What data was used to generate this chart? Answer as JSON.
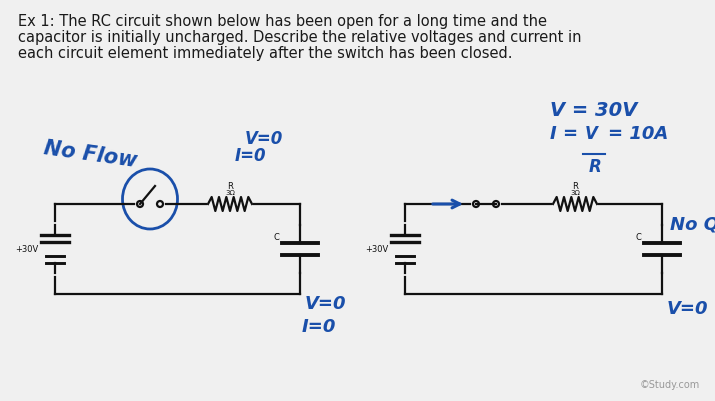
{
  "bg_color": "#f0f0f0",
  "title_text_line1": "Ex 1: The RC circuit shown below has been open for a long time and the",
  "title_text_line2": "capacitor is initially uncharged. Describe the relative voltages and current in",
  "title_text_line3": "each circuit element immediately after the switch has been closed.",
  "title_color": "#1a1a1a",
  "title_fontsize": 10.5,
  "circuit_color": "#111111",
  "handwrite_color": "#1a4faa",
  "study_color": "#999999"
}
